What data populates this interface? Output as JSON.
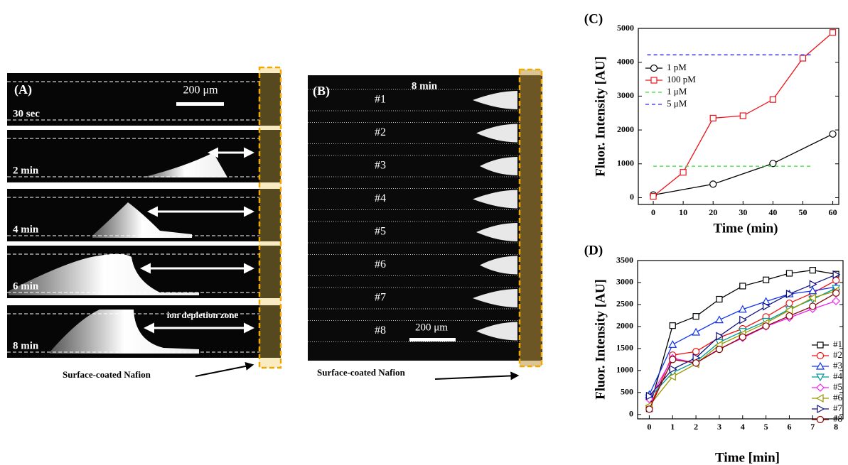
{
  "panel_a": {
    "label": "(A)",
    "scale_bar": "200 μm",
    "frames": [
      "30 sec",
      "2 min",
      "4 min",
      "6 min",
      "8 min"
    ],
    "zone_label": "ion depletion zone",
    "nafion_label": "Surface-coated Nafion"
  },
  "panel_b": {
    "label": "(B)",
    "time": "8 min",
    "channels": [
      "#1",
      "#2",
      "#3",
      "#4",
      "#5",
      "#6",
      "#7",
      "#8"
    ],
    "scale_bar": "200 μm",
    "nafion_label": "Surface-coated Nafion"
  },
  "chart_data": [
    {
      "type": "line",
      "title": "(C)",
      "x_label": "Time (min)",
      "y_label": "Fluor. Intensity [AU]",
      "xlim": [
        -5,
        62
      ],
      "ylim": [
        -200,
        5000
      ],
      "xticks": [
        0,
        10,
        20,
        30,
        40,
        50,
        60
      ],
      "yticks": [
        0,
        1000,
        2000,
        3000,
        4000,
        5000
      ],
      "legend": "upper-left",
      "series": [
        {
          "name": "1 pM",
          "color": "#000000",
          "marker": "circle",
          "x": [
            0,
            20,
            40,
            60
          ],
          "values": [
            80,
            400,
            1010,
            1880
          ]
        },
        {
          "name": "100 pM",
          "color": "#e8141b",
          "marker": "square",
          "x": [
            0,
            10,
            20,
            30,
            40,
            50,
            60
          ],
          "values": [
            40,
            750,
            2350,
            2420,
            2900,
            4120,
            4880
          ]
        },
        {
          "name": "1 μM",
          "color": "#33dd33",
          "dash": true,
          "x": [
            0,
            53
          ],
          "values": [
            930,
            930
          ]
        },
        {
          "name": "5 μM",
          "color": "#2a2ae0",
          "dash": true,
          "x": [
            -2,
            53
          ],
          "values": [
            4220,
            4220
          ]
        }
      ]
    },
    {
      "type": "line",
      "title": "(D)",
      "x_label": "Time [min]",
      "y_label": "Fluor. Intensity [AU]",
      "xlim": [
        -0.5,
        8.3
      ],
      "ylim": [
        -100,
        3500
      ],
      "xticks": [
        0,
        1,
        2,
        3,
        4,
        5,
        6,
        7,
        8
      ],
      "yticks": [
        0,
        500,
        1000,
        1500,
        2000,
        2500,
        3000,
        3500
      ],
      "legend": "lower-right",
      "x": [
        0,
        1,
        2,
        3,
        4,
        5,
        6,
        7,
        8
      ],
      "series": [
        {
          "name": "#1",
          "color": "#000000",
          "marker": "square",
          "values": [
            130,
            2020,
            2230,
            2620,
            2920,
            3060,
            3210,
            3280,
            3190
          ]
        },
        {
          "name": "#2",
          "color": "#ee1111",
          "marker": "circle",
          "values": [
            150,
            1350,
            1430,
            1750,
            1950,
            2220,
            2530,
            2760,
            3050
          ]
        },
        {
          "name": "#3",
          "color": "#1133ee",
          "marker": "triangle-up",
          "values": [
            450,
            1590,
            1870,
            2150,
            2390,
            2570,
            2740,
            2810,
            2900
          ]
        },
        {
          "name": "#4",
          "color": "#009999",
          "marker": "triangle-down",
          "values": [
            380,
            950,
            1200,
            1640,
            1890,
            2120,
            2390,
            2620,
            2870
          ]
        },
        {
          "name": "#5",
          "color": "#ee22ee",
          "marker": "diamond",
          "values": [
            350,
            1280,
            1170,
            1490,
            1740,
            2000,
            2200,
            2400,
            2580
          ]
        },
        {
          "name": "#6",
          "color": "#999900",
          "marker": "triangle-left",
          "values": [
            200,
            860,
            1150,
            1580,
            1830,
            2080,
            2370,
            2650,
            2810
          ]
        },
        {
          "name": "#7",
          "color": "#101080",
          "marker": "triangle-right",
          "values": [
            420,
            1030,
            1290,
            1780,
            2150,
            2460,
            2740,
            2960,
            3180
          ]
        },
        {
          "name": "#8",
          "color": "#880000",
          "marker": "circle",
          "values": [
            120,
            1250,
            1170,
            1480,
            1760,
            2010,
            2240,
            2460,
            2760
          ]
        }
      ]
    }
  ]
}
